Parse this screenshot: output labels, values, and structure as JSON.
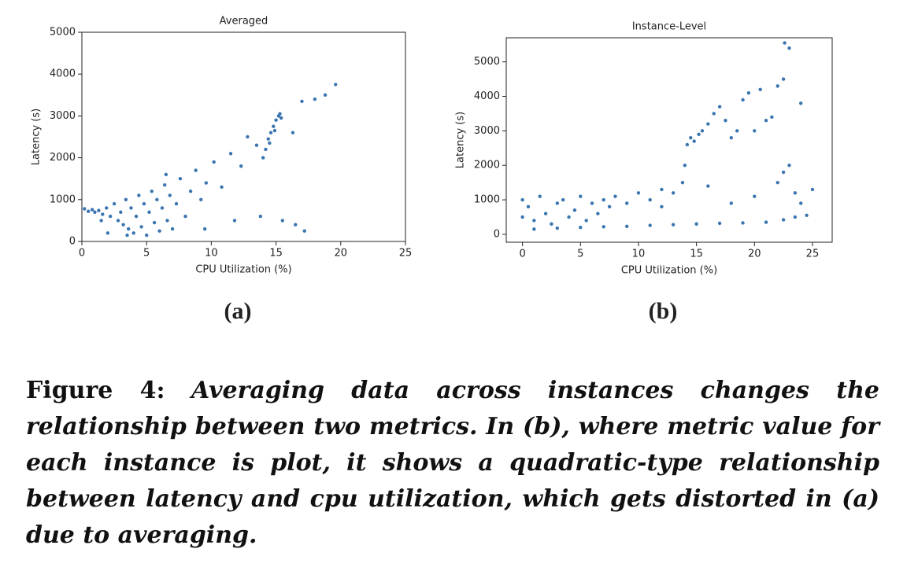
{
  "chart_data": [
    {
      "type": "scatter",
      "title": "Averaged",
      "xlabel": "CPU Utilization (%)",
      "ylabel": "Latency (s)",
      "color": "#3a75b0",
      "xlim": [
        0,
        25
      ],
      "ylim": [
        0,
        5000
      ],
      "xticks": [
        0,
        5,
        10,
        15,
        20,
        25
      ],
      "yticks": [
        0,
        1000,
        2000,
        3000,
        4000,
        5000
      ],
      "x": [
        0.2,
        0.5,
        0.8,
        1.0,
        1.3,
        1.6,
        1.9,
        2.2,
        2.5,
        2.8,
        3.0,
        3.2,
        3.4,
        3.6,
        3.8,
        4.0,
        4.2,
        4.4,
        4.6,
        4.8,
        5.0,
        5.2,
        5.4,
        5.6,
        5.8,
        6.0,
        6.2,
        6.4,
        6.6,
        6.8,
        7.0,
        7.3,
        7.6,
        8.0,
        8.4,
        8.8,
        9.2,
        9.6,
        10.2,
        10.8,
        11.5,
        12.3,
        12.8,
        13.5,
        14.0,
        14.2,
        14.4,
        14.6,
        14.8,
        15.0,
        15.2,
        15.4,
        14.5,
        14.9,
        15.3,
        16.3,
        17.0,
        18.0,
        18.8,
        19.6,
        13.8,
        15.5,
        16.5,
        17.2,
        11.8,
        9.5,
        2.0,
        3.5,
        6.5,
        1.5
      ],
      "values": [
        780,
        720,
        760,
        700,
        740,
        650,
        800,
        600,
        900,
        500,
        700,
        400,
        1000,
        300,
        800,
        200,
        600,
        1100,
        350,
        900,
        150,
        700,
        1200,
        450,
        1000,
        250,
        800,
        1350,
        500,
        1100,
        300,
        900,
        1500,
        600,
        1200,
        1700,
        1000,
        1400,
        1900,
        1300,
        2100,
        1800,
        2500,
        2300,
        2000,
        2200,
        2450,
        2600,
        2750,
        2900,
        3000,
        2950,
        2350,
        2650,
        3050,
        2600,
        3350,
        3400,
        3500,
        3750,
        600,
        500,
        400,
        250,
        500,
        300,
        200,
        150,
        1600,
        500
      ]
    },
    {
      "type": "scatter",
      "title": "Instance-Level",
      "xlabel": "CPU Utilization (%)",
      "ylabel": "Latency (s)",
      "color": "#3a75b0",
      "xlim": [
        -1.4,
        26.7
      ],
      "ylim": [
        -230,
        5700
      ],
      "xticks": [
        0,
        5,
        10,
        15,
        20,
        25
      ],
      "yticks": [
        0,
        1000,
        2000,
        3000,
        4000,
        5000
      ],
      "x": [
        0,
        0,
        0.5,
        1,
        1.5,
        2,
        2.5,
        3,
        3.5,
        4,
        4.5,
        5,
        5.5,
        6,
        6.5,
        7,
        7.5,
        8,
        9,
        10,
        11,
        12,
        13,
        13.8,
        14,
        14.2,
        14.5,
        14.8,
        15.2,
        15.5,
        16,
        16.5,
        17,
        17.5,
        18,
        18.5,
        19,
        19.5,
        20,
        20.5,
        21,
        21.5,
        22,
        22.5,
        22.6,
        23,
        22,
        22.5,
        23,
        23.5,
        24,
        1,
        3,
        5,
        7,
        9,
        11,
        13,
        15,
        17,
        19,
        21,
        22.5,
        23.5,
        24.5,
        18,
        20,
        16,
        12,
        24,
        25
      ],
      "values": [
        500,
        1000,
        800,
        400,
        1100,
        600,
        300,
        900,
        1000,
        500,
        700,
        1100,
        400,
        900,
        600,
        1000,
        800,
        1100,
        900,
        1200,
        1000,
        1300,
        1200,
        1500,
        2000,
        2600,
        2800,
        2700,
        2900,
        3000,
        3200,
        3500,
        3700,
        3300,
        2800,
        3000,
        3900,
        4100,
        3000,
        4200,
        3300,
        3400,
        4300,
        4500,
        5550,
        5400,
        1500,
        1800,
        2000,
        1200,
        900,
        150,
        180,
        200,
        220,
        230,
        260,
        280,
        300,
        320,
        330,
        350,
        420,
        500,
        550,
        900,
        1100,
        1400,
        800,
        3800,
        1300
      ]
    }
  ],
  "subfigures": [
    "(a)",
    "(b)"
  ],
  "caption": {
    "label": "Figure 4:",
    "text": "Averaging data across instances changes the relationship between two metrics. In (b), where metric value for each instance is plot, it shows a quadratic-type relationship between latency and cpu utilization, which gets distorted in (a) due to averaging."
  }
}
